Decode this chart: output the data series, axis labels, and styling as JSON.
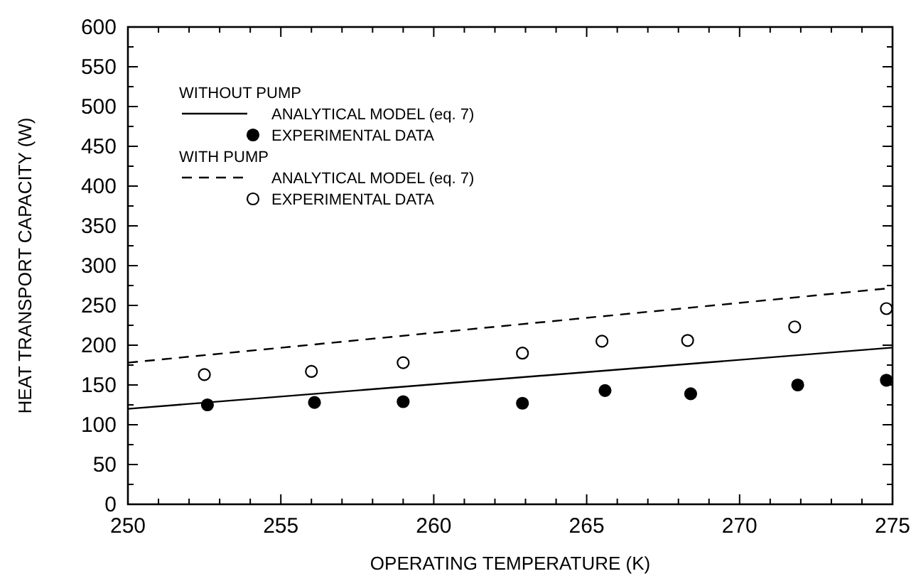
{
  "chart_data": {
    "type": "line",
    "xlabel": "OPERATING TEMPERATURE (K)",
    "ylabel": "HEAT TRANSPORT CAPACITY (W)",
    "xlim": [
      250,
      275
    ],
    "ylim": [
      0,
      600
    ],
    "xticks": [
      250,
      {
        "value": 251,
        "label": null
      },
      {
        "value": 252,
        "label": null
      },
      {
        "value": 253,
        "label": null
      },
      {
        "value": 254,
        "label": null
      },
      255,
      {
        "value": 256,
        "label": null
      },
      {
        "value": 257,
        "label": null
      },
      {
        "value": 258,
        "label": null
      },
      {
        "value": 259,
        "label": null
      },
      260,
      {
        "value": 261,
        "label": null
      },
      {
        "value": 262,
        "label": null
      },
      {
        "value": 263,
        "label": null
      },
      {
        "value": 264,
        "label": null
      },
      265,
      {
        "value": 266,
        "label": null
      },
      {
        "value": 267,
        "label": null
      },
      {
        "value": 268,
        "label": null
      },
      {
        "value": 269,
        "label": null
      },
      270,
      {
        "value": 271,
        "label": null
      },
      {
        "value": 272,
        "label": null
      },
      {
        "value": 273,
        "label": null
      },
      {
        "value": 274,
        "label": null
      },
      275
    ],
    "yticks": [
      0,
      {
        "value": 25,
        "label": null
      },
      50,
      {
        "value": 75,
        "label": null
      },
      100,
      {
        "value": 125,
        "label": null
      },
      150,
      {
        "value": 175,
        "label": null
      },
      200,
      {
        "value": 225,
        "label": null
      },
      250,
      {
        "value": 275,
        "label": null
      },
      300,
      {
        "value": 325,
        "label": null
      },
      350,
      {
        "value": 375,
        "label": null
      },
      400,
      {
        "value": 425,
        "label": null
      },
      450,
      {
        "value": 475,
        "label": null
      },
      500,
      {
        "value": 525,
        "label": null
      },
      550,
      {
        "value": 575,
        "label": null
      },
      600
    ],
    "grid": false,
    "legend": "top left",
    "annotations": [
      "WITHOUT PUMP",
      "WITH PUMP"
    ],
    "series": [
      {
        "name": "ANALYTICAL MODEL (eq. 7)",
        "line_style": "solid",
        "marker": "none",
        "color": "#000000",
        "x": [
          250,
          275
        ],
        "values": [
          120,
          197
        ]
      },
      {
        "name": "EXPERIMENTAL DATA",
        "type": "scatter",
        "marker": "circle",
        "color": "#000000",
        "x": [
          252.6,
          256.1,
          259.0,
          262.9,
          265.6,
          268.4,
          271.9,
          274.8
        ],
        "values": [
          125,
          128,
          129,
          127,
          143,
          139,
          150,
          156
        ]
      },
      {
        "name": "ANALYTICAL MODEL (eq. 7)",
        "line_style": "dashed",
        "marker": "none",
        "color": "#000000",
        "x": [
          250,
          275
        ],
        "values": [
          178,
          272
        ]
      },
      {
        "name": "EXPERIMENTAL DATA",
        "type": "scatter",
        "marker": "circle",
        "color": "#ffffff",
        "x": [
          252.5,
          256.0,
          259.0,
          262.9,
          265.5,
          268.3,
          271.8,
          274.8
        ],
        "values": [
          163,
          167,
          178,
          190,
          205,
          206,
          223,
          246
        ]
      }
    ]
  }
}
